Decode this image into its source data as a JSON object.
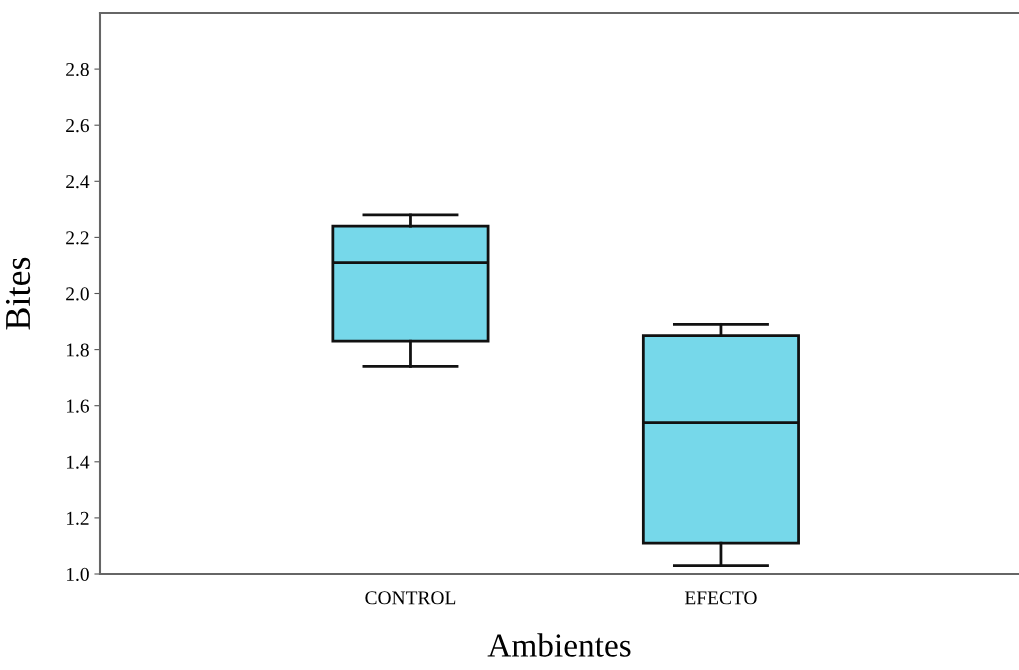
{
  "chart_data": {
    "type": "box",
    "xlabel": "Ambientes",
    "ylabel": "Bites",
    "categories": [
      "CONTROL",
      "EFECTO"
    ],
    "boxes": [
      {
        "low": 1.74,
        "q1": 1.83,
        "median": 2.11,
        "q3": 2.24,
        "high": 2.28
      },
      {
        "low": 1.03,
        "q1": 1.11,
        "median": 1.54,
        "q3": 1.85,
        "high": 1.89
      }
    ],
    "color": "#76d8ea",
    "ylim": [
      1.0,
      3.0
    ],
    "yticks": [
      {
        "value": 1.0,
        "label": "1.0"
      },
      1.2,
      1.4,
      1.6,
      1.8,
      {
        "value": 2.0,
        "label": "2.0"
      },
      2.2,
      2.4,
      2.6,
      2.8
    ],
    "grid": false,
    "legend": false
  }
}
